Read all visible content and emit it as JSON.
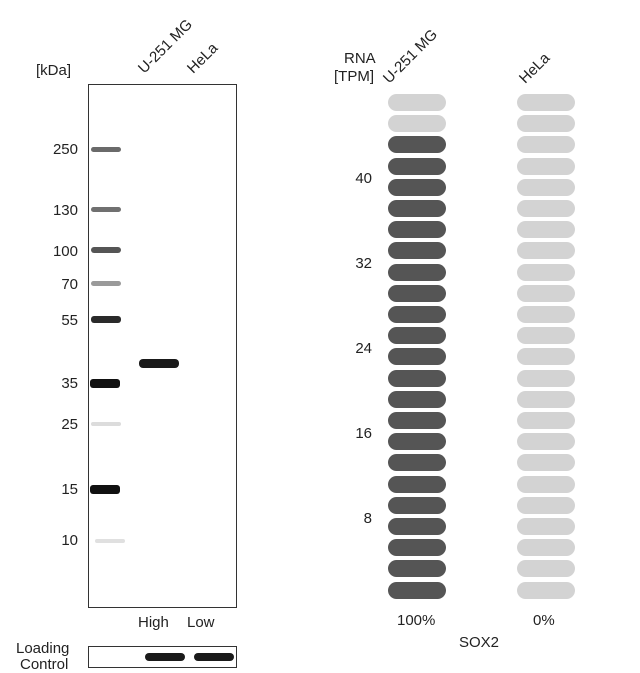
{
  "western_blot": {
    "unit_label": "[kDa]",
    "lanes": [
      "U-251 MG",
      "HeLa"
    ],
    "markers": [
      {
        "label": "250",
        "kda": 250
      },
      {
        "label": "130",
        "kda": 130
      },
      {
        "label": "100",
        "kda": 100
      },
      {
        "label": "70",
        "kda": 70
      },
      {
        "label": "55",
        "kda": 55
      },
      {
        "label": "35",
        "kda": 35
      },
      {
        "label": "25",
        "kda": 25
      },
      {
        "label": "15",
        "kda": 15
      },
      {
        "label": "10",
        "kda": 10
      }
    ],
    "expression_labels": [
      "High",
      "Low"
    ],
    "loading_control_label": [
      "Loading",
      "Control"
    ]
  },
  "rna": {
    "header": [
      "RNA",
      "[TPM]"
    ],
    "cell_lines": [
      "U-251 MG",
      "HeLa"
    ],
    "y_ticks": [
      "40",
      "32",
      "24",
      "16",
      "8"
    ],
    "percentages": [
      "100%",
      "0%"
    ],
    "gene": "SOX2",
    "filled_color": "#555555",
    "light_color": "#d3d3d3"
  },
  "chart_data": {
    "type": "bar",
    "title": "",
    "categories": [
      "U-251 MG",
      "HeLa"
    ],
    "xlabel": "SOX2",
    "ylabel": "RNA [TPM]",
    "segments_per_column": 24,
    "values": [
      44,
      0
    ],
    "ylim": [
      0,
      48
    ],
    "percent_labels": [
      "100%",
      "0%"
    ]
  }
}
